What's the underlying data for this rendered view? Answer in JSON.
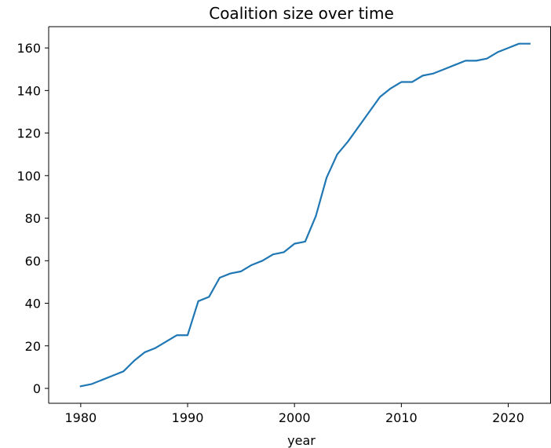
{
  "chart_data": {
    "type": "line",
    "title": "Coalition size over time",
    "xlabel": "year",
    "ylabel": "",
    "xlim": [
      1977,
      2024
    ],
    "ylim": [
      -7,
      170
    ],
    "xticks": [
      1980,
      1990,
      2000,
      2010,
      2020
    ],
    "yticks": [
      0,
      20,
      40,
      60,
      80,
      100,
      120,
      140,
      160
    ],
    "grid": false,
    "series": [
      {
        "color": "#1f77b4",
        "x": [
          1980,
          1981,
          1982,
          1983,
          1984,
          1985,
          1986,
          1987,
          1988,
          1989,
          1990,
          1991,
          1992,
          1993,
          1994,
          1995,
          1996,
          1997,
          1998,
          1999,
          2000,
          2001,
          2002,
          2003,
          2004,
          2005,
          2006,
          2007,
          2008,
          2009,
          2010,
          2011,
          2012,
          2013,
          2014,
          2015,
          2016,
          2017,
          2018,
          2019,
          2020,
          2021,
          2022
        ],
        "y": [
          1,
          2,
          4,
          6,
          8,
          13,
          17,
          19,
          22,
          25,
          25,
          41,
          43,
          52,
          54,
          55,
          58,
          60,
          63,
          64,
          68,
          69,
          81,
          99,
          110,
          116,
          123,
          130,
          137,
          141,
          144,
          144,
          147,
          148,
          150,
          152,
          154,
          154,
          155,
          158,
          160,
          162,
          162
        ]
      }
    ]
  }
}
